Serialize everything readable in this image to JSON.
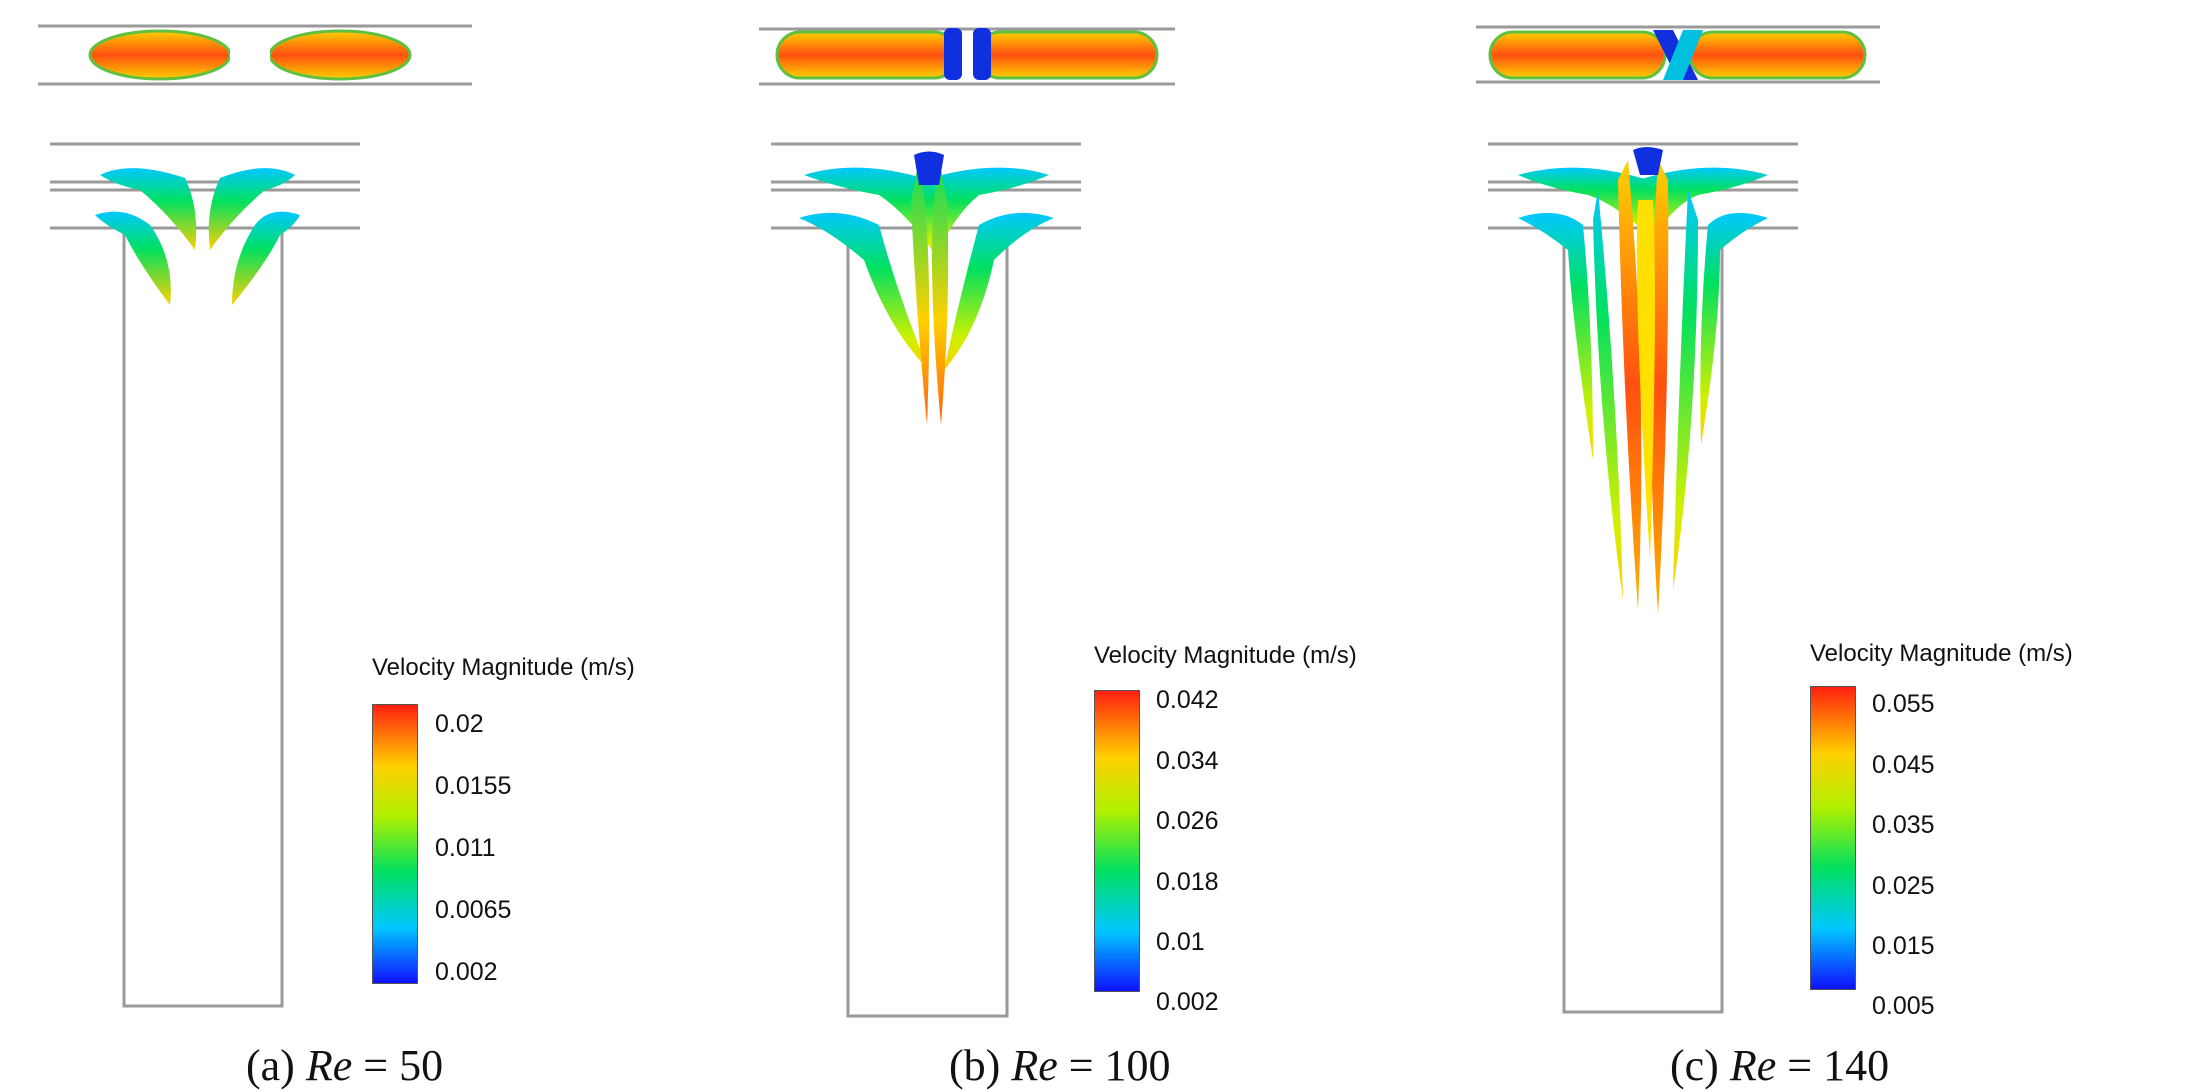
{
  "panels": [
    {
      "caption_prefix": "(a) ",
      "caption_var": "Re",
      "caption_suffix": " = 50",
      "legend_title": "Velocity Magnitude (m/s)",
      "ticks": [
        "0.02",
        "0.0155",
        "0.011",
        "0.0065",
        "0.002"
      ]
    },
    {
      "caption_prefix": "(b) ",
      "caption_var": "Re",
      "caption_suffix": " = 100",
      "legend_title": "Velocity Magnitude (m/s)",
      "ticks": [
        "0.042",
        "0.034",
        "0.026",
        "0.018",
        "0.01",
        "0.002"
      ]
    },
    {
      "caption_prefix": "(c) ",
      "caption_var": "Re",
      "caption_suffix": " = 140",
      "legend_title": "Velocity Magnitude (m/s)",
      "ticks": [
        "0.055",
        "0.045",
        "0.035",
        "0.025",
        "0.015",
        "0.005"
      ]
    }
  ],
  "colors": {
    "low": "#1010ff",
    "mid_low": "#00c8ff",
    "mid": "#00e060",
    "mid_high": "#b0f000",
    "high_mid": "#ffd000",
    "high": "#ff2010",
    "outline": "#9a9a9a"
  }
}
